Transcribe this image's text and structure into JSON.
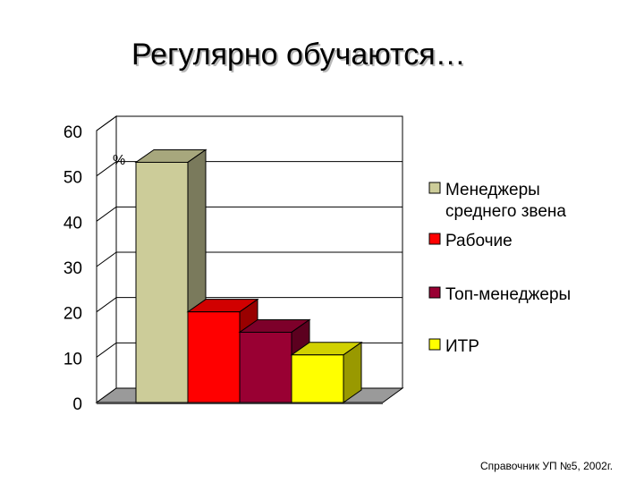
{
  "title": "Регулярно обучаются…",
  "source": "Справочник УП №5, 2002г.",
  "chart_data": {
    "type": "bar",
    "unit_label": "%",
    "ylim": [
      0,
      60
    ],
    "yticks": [
      "0",
      "10",
      "20",
      "30",
      "40",
      "50",
      "60"
    ],
    "grid": true,
    "legend_position": "right",
    "series": [
      {
        "name": "Менеджеры среднего звена",
        "legend_lines": [
          "Менеджеры",
          "среднего звена"
        ],
        "value": 53,
        "color": "#cccc99"
      },
      {
        "name": "Рабочие",
        "legend_lines": [
          "Рабочие"
        ],
        "value": 20,
        "color": "#ff0000"
      },
      {
        "name": "Топ-менеджеры",
        "legend_lines": [
          "Топ-менеджеры"
        ],
        "value": 15.5,
        "color": "#990033"
      },
      {
        "name": "ИТР",
        "legend_lines": [
          "ИТР"
        ],
        "value": 10.5,
        "color": "#ffff00"
      }
    ]
  }
}
